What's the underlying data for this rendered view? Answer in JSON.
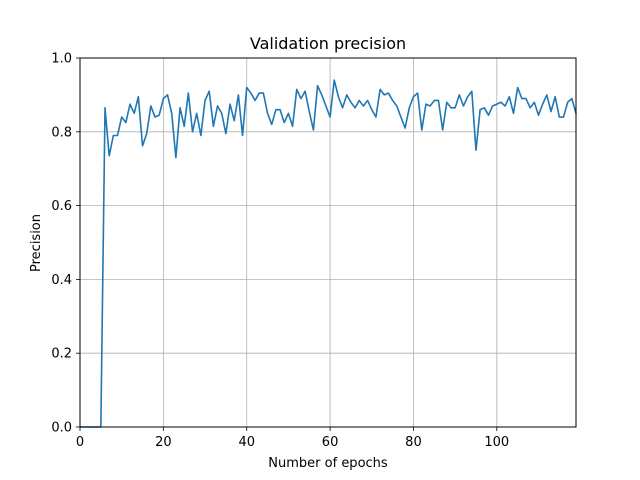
{
  "chart_data": {
    "type": "line",
    "title": "Validation precision",
    "xlabel": "Number of epochs",
    "ylabel": "Precision",
    "xlim": [
      0,
      119
    ],
    "ylim": [
      0.0,
      1.0
    ],
    "xticks": [
      0,
      20,
      40,
      60,
      80,
      100
    ],
    "yticks": [
      0.0,
      0.2,
      0.4,
      0.6,
      0.8,
      1.0
    ],
    "xtick_labels": [
      "0",
      "20",
      "40",
      "60",
      "80",
      "100"
    ],
    "ytick_labels": [
      "0.0",
      "0.2",
      "0.4",
      "0.6",
      "0.8",
      "1.0"
    ],
    "grid": true,
    "line_color": "#1f77b4",
    "series": [
      {
        "x": [
          0,
          1,
          2,
          3,
          4,
          5,
          6,
          7,
          8,
          9,
          10,
          11,
          12,
          13,
          14,
          15,
          16,
          17,
          18,
          19,
          20,
          21,
          22,
          23,
          24,
          25,
          26,
          27,
          28,
          29,
          30,
          31,
          32,
          33,
          34,
          35,
          36,
          37,
          38,
          39,
          40,
          41,
          42,
          43,
          44,
          45,
          46,
          47,
          48,
          49,
          50,
          51,
          52,
          53,
          54,
          55,
          56,
          57,
          58,
          59,
          60,
          61,
          62,
          63,
          64,
          65,
          66,
          67,
          68,
          69,
          70,
          71,
          72,
          73,
          74,
          75,
          76,
          77,
          78,
          79,
          80,
          81,
          82,
          83,
          84,
          85,
          86,
          87,
          88,
          89,
          90,
          91,
          92,
          93,
          94,
          95,
          96,
          97,
          98,
          99,
          100,
          101,
          102,
          103,
          104,
          105,
          106,
          107,
          108,
          109,
          110,
          111,
          112,
          113,
          114,
          115,
          116,
          117,
          118,
          119
        ],
        "values": [
          0.0,
          0.0,
          0.0,
          0.0,
          0.0,
          0.0,
          0.865,
          0.735,
          0.79,
          0.79,
          0.84,
          0.825,
          0.875,
          0.85,
          0.895,
          0.762,
          0.795,
          0.87,
          0.84,
          0.845,
          0.89,
          0.9,
          0.85,
          0.73,
          0.865,
          0.815,
          0.905,
          0.8,
          0.85,
          0.79,
          0.885,
          0.91,
          0.815,
          0.87,
          0.85,
          0.795,
          0.875,
          0.83,
          0.9,
          0.79,
          0.92,
          0.905,
          0.885,
          0.905,
          0.905,
          0.85,
          0.82,
          0.86,
          0.86,
          0.825,
          0.85,
          0.815,
          0.915,
          0.89,
          0.91,
          0.855,
          0.805,
          0.925,
          0.9,
          0.87,
          0.84,
          0.94,
          0.895,
          0.865,
          0.9,
          0.88,
          0.865,
          0.885,
          0.87,
          0.885,
          0.86,
          0.84,
          0.915,
          0.9,
          0.905,
          0.885,
          0.87,
          0.84,
          0.81,
          0.865,
          0.895,
          0.905,
          0.805,
          0.875,
          0.87,
          0.885,
          0.885,
          0.805,
          0.88,
          0.865,
          0.865,
          0.9,
          0.87,
          0.895,
          0.91,
          0.75,
          0.86,
          0.865,
          0.845,
          0.87,
          0.875,
          0.88,
          0.87,
          0.895,
          0.85,
          0.92,
          0.89,
          0.89,
          0.865,
          0.88,
          0.845,
          0.875,
          0.9,
          0.855,
          0.895,
          0.84,
          0.84,
          0.88,
          0.89,
          0.85
        ]
      }
    ]
  }
}
